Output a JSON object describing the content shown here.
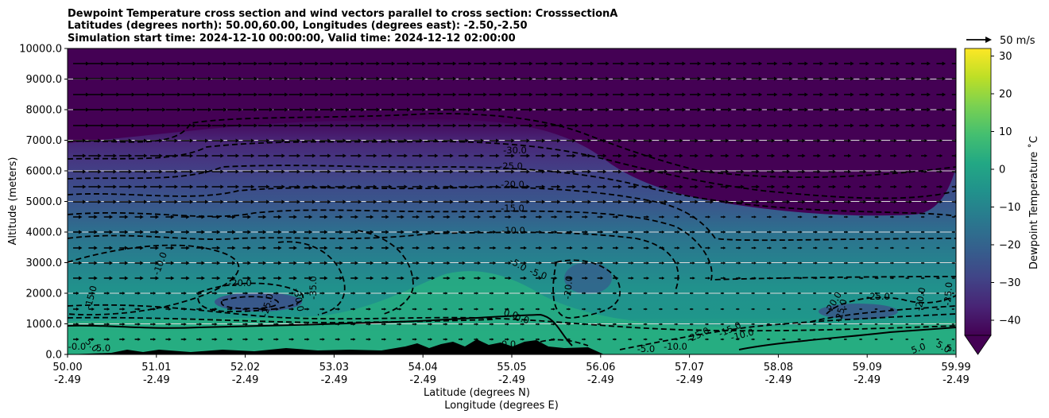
{
  "chart_data": {
    "type": "heatmap",
    "title_lines": [
      "Dewpoint Temperature cross section and wind vectors parallel to cross section: CrosssectionA",
      "Latitudes (degrees north): 50.00,60.00, Longitudes (degrees east): -2.50,-2.50",
      "Simulation start time: 2024-12-10 00:00:00, Valid time: 2024-12-12 02:00:00"
    ],
    "ylabel": "Altitude (meters)",
    "xlabel_lines": [
      "Latitude (degrees N)",
      "Longitude (degrees E)"
    ],
    "ylim": [
      0,
      10000
    ],
    "y_ticks": [
      "0.0",
      "1000.0",
      "2000.0",
      "3000.0",
      "4000.0",
      "5000.0",
      "6000.0",
      "7000.0",
      "8000.0",
      "9000.0",
      "10000.0"
    ],
    "x_tick_lat": [
      "50.00",
      "51.01",
      "52.02",
      "53.03",
      "54.04",
      "55.05",
      "56.06",
      "57.07",
      "58.08",
      "59.09",
      "59.99"
    ],
    "x_tick_lon": [
      "-2.49",
      "-2.49",
      "-2.49",
      "-2.49",
      "-2.49",
      "-2.49",
      "-2.49",
      "-2.49",
      "-2.49",
      "-2.49",
      "-2.49"
    ],
    "xlim": [
      50.0,
      59.99
    ],
    "horizontal_grid": true,
    "colorbar": {
      "label": "Dewpoint Temperature ˚C",
      "ticks": [
        "−40",
        "−30",
        "−20",
        "−10",
        "0",
        "10",
        "20",
        "30"
      ],
      "range": [
        -44,
        32
      ],
      "extend": "min",
      "colormap": "viridis"
    },
    "quiver_key": {
      "label": "50 m/s"
    },
    "contour_labels": [
      "-30.0",
      "-25.0",
      "-20.0",
      "-15.0",
      "-10.0",
      "-5.0",
      "-5.0",
      "0.0",
      "0.0",
      "-10.0",
      "-15.0",
      "-20.0",
      "-25.0",
      "-30.0",
      "-35.0",
      "-20.0",
      "-20.0",
      "-25.0",
      "-25.0",
      "-20.0",
      "-25.0",
      "-25.0",
      "-15.0",
      "-10.0",
      "-5.0",
      "-10.0",
      "-0.0",
      "5.0",
      "5.0",
      "0.0",
      "5.0",
      "5.0",
      "5.0"
    ]
  }
}
